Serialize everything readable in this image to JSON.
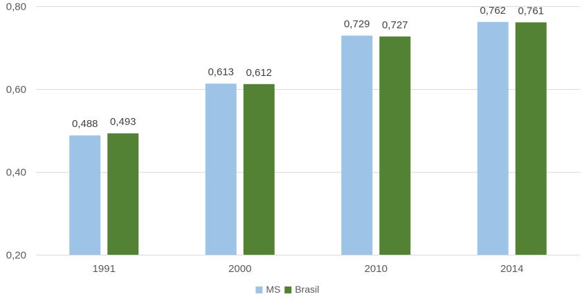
{
  "chart_data": {
    "type": "bar",
    "title": "",
    "xlabel": "",
    "ylabel": "",
    "categories": [
      "1991",
      "2000",
      "2010",
      "2014"
    ],
    "series": [
      {
        "name": "MS",
        "color": "#9dc3e6",
        "values": [
          0.488,
          0.613,
          0.729,
          0.762
        ],
        "labels": [
          "0,488",
          "0,613",
          "0,729",
          "0,762"
        ]
      },
      {
        "name": "Brasil",
        "color": "#548235",
        "values": [
          0.493,
          0.612,
          0.727,
          0.761
        ],
        "labels": [
          "0,493",
          "0,612",
          "0,727",
          "0,761"
        ]
      }
    ],
    "ylim": [
      0.2,
      0.8
    ],
    "yticks": [
      0.2,
      0.4,
      0.6,
      0.8
    ],
    "ytick_labels": [
      "0,20",
      "0,40",
      "0,60",
      "0,80"
    ],
    "grid": true,
    "legend_position": "bottom-center",
    "colors": {
      "gridline": "#d9d9d9",
      "axis_text": "#595959",
      "data_label": "#404040"
    }
  }
}
